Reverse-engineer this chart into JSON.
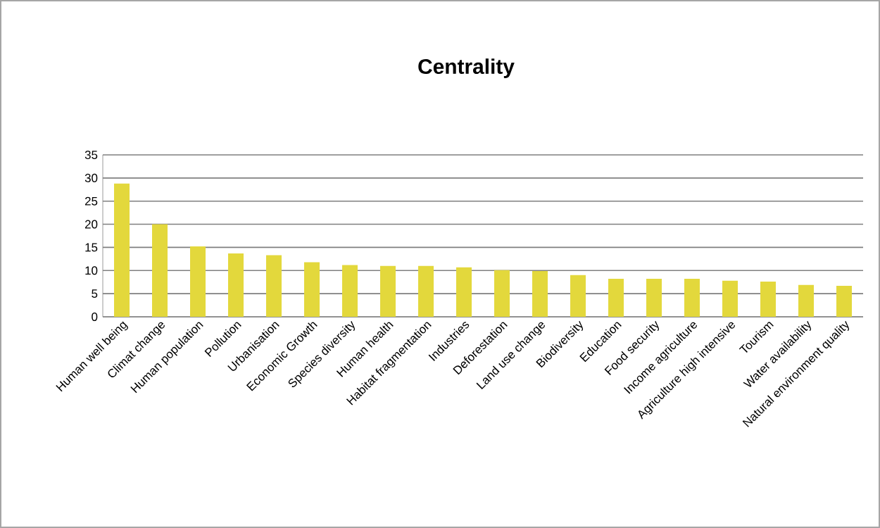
{
  "chart_data": {
    "type": "bar",
    "title": "Centrality",
    "categories": [
      "Human well being",
      "Climat change",
      "Human population",
      "Pollution",
      "Urbanisation",
      "Economic Growth",
      "Species diversity",
      "Human health",
      "Habitat fragmentation",
      "Industries",
      "Deforestation",
      "Land use change",
      "Biodiversity",
      "Education",
      "Food security",
      "Income agriculture",
      "Agriculture high intensive",
      "Tourism",
      "Water availability",
      "Natural environment quality"
    ],
    "values": [
      28.8,
      20.0,
      15.2,
      13.7,
      13.3,
      11.8,
      11.2,
      11.0,
      11.0,
      10.7,
      10.1,
      9.9,
      9.0,
      8.2,
      8.2,
      8.2,
      7.8,
      7.6,
      6.9,
      6.7
    ],
    "color": "#e3d83c",
    "ylim": [
      0,
      35
    ],
    "yticks": [
      0,
      5,
      10,
      15,
      20,
      25,
      30,
      35
    ],
    "grid": "y"
  }
}
